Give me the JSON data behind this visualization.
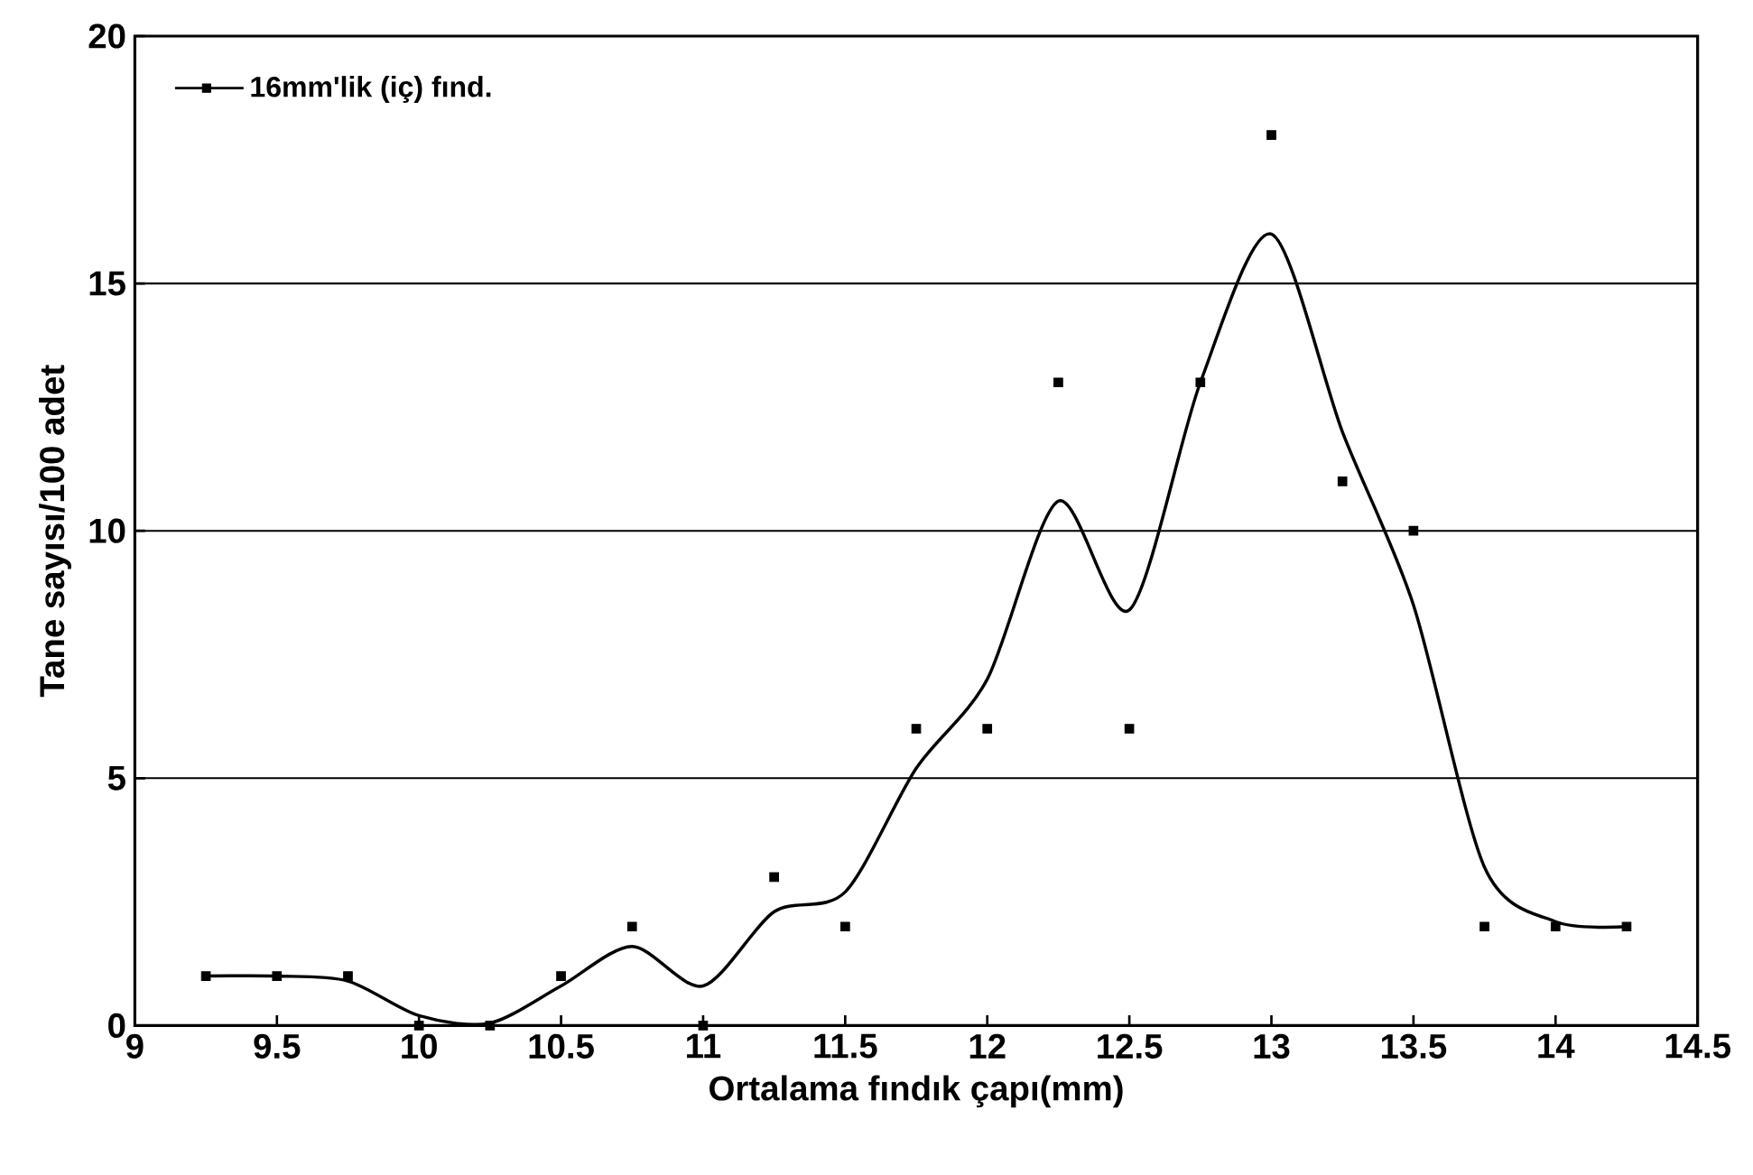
{
  "chart_data": {
    "type": "scatter",
    "xlabel": "Ortalama fındık çapı(mm)",
    "ylabel": "Tane sayısı/100 adet",
    "xlim": [
      9,
      14.5
    ],
    "xticks": [
      9,
      9.5,
      10,
      10.5,
      11,
      11.5,
      12,
      12.5,
      13,
      13.5,
      14,
      14.5
    ],
    "ylim": [
      0,
      20
    ],
    "yticks": [
      0,
      5,
      10,
      15,
      20
    ],
    "grid": "y",
    "legend": "top left",
    "series": [
      {
        "name": "16mm'lik (iç) fınd.",
        "marker": "square",
        "color": "#000000",
        "x": [
          9.25,
          9.5,
          9.75,
          10,
          10.25,
          10.5,
          10.75,
          11,
          11.25,
          11.5,
          11.75,
          12,
          12.25,
          12.5,
          12.75,
          13,
          13.25,
          13.5,
          13.75,
          14,
          14.25
        ],
        "values": [
          1,
          1,
          1,
          0,
          0,
          1,
          2,
          0,
          3,
          2,
          6,
          6,
          13,
          6,
          13,
          18,
          11,
          10,
          2,
          2,
          2
        ]
      },
      {
        "type": "line",
        "marker": "none",
        "color": "#000000",
        "x": [
          9.25,
          9.5,
          9.75,
          10,
          10.25,
          10.5,
          10.75,
          11,
          11.25,
          11.5,
          11.75,
          12,
          12.25,
          12.5,
          12.75,
          13,
          13.25,
          13.5,
          13.75,
          14,
          14.25
        ],
        "values": [
          1,
          1,
          0.9,
          0.2,
          0.05,
          0.8,
          1.6,
          0.8,
          2.3,
          2.7,
          5.2,
          7,
          10.6,
          8.4,
          13,
          16,
          12,
          8.5,
          3.2,
          2.1,
          2
        ]
      }
    ]
  }
}
